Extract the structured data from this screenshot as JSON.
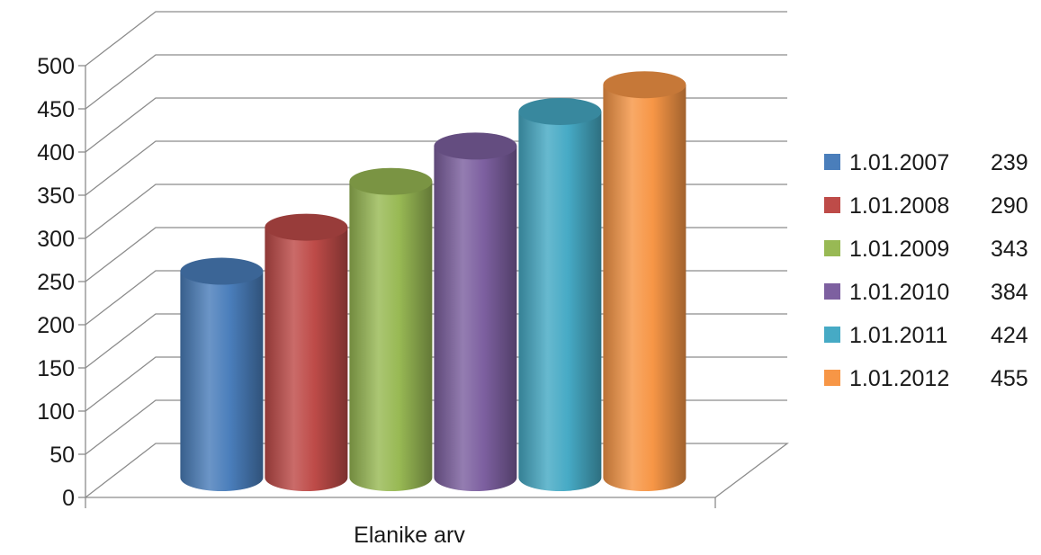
{
  "chart_data": {
    "type": "bar",
    "style": "3d-cylinder",
    "title": "",
    "xlabel": "",
    "ylabel": "",
    "categories": [
      "Elanike arv"
    ],
    "ylim": [
      0,
      500
    ],
    "yticks": [
      0,
      50,
      100,
      150,
      200,
      250,
      300,
      350,
      400,
      450,
      500
    ],
    "grid": true,
    "legend_position": "right",
    "series": [
      {
        "name": "1.01.2007",
        "value_label": "239",
        "values": [
          239
        ],
        "color": "#4a7ebb"
      },
      {
        "name": "1.01.2008",
        "value_label": "290",
        "values": [
          290
        ],
        "color": "#be4b48"
      },
      {
        "name": "1.01.2009",
        "value_label": "343",
        "values": [
          343
        ],
        "color": "#98b954"
      },
      {
        "name": "1.01.2010",
        "value_label": "384",
        "values": [
          384
        ],
        "color": "#7d60a0"
      },
      {
        "name": "1.01.2011",
        "value_label": "424",
        "values": [
          424
        ],
        "color": "#46aac5"
      },
      {
        "name": "1.01.2012",
        "value_label": "455",
        "values": [
          455
        ],
        "color": "#f79646"
      }
    ]
  }
}
